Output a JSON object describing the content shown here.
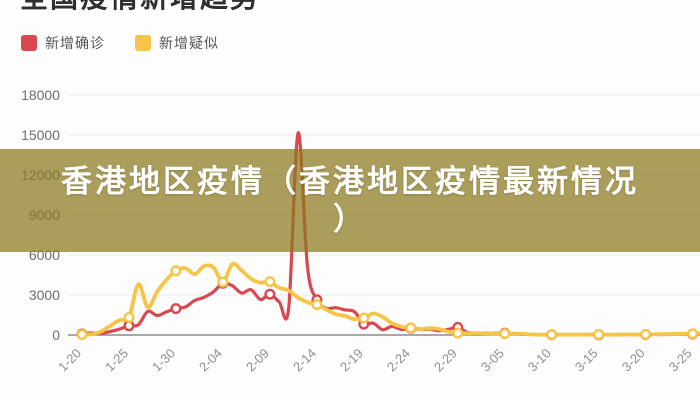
{
  "header": {
    "title": "全国疫情新增趋势"
  },
  "legend": {
    "items": [
      {
        "label": "新增确诊",
        "color": "#d8494f"
      },
      {
        "label": "新增疑似",
        "color": "#f6c548"
      }
    ]
  },
  "overlay": {
    "text": "香港地区疫情（香港地区疫情最新情况）",
    "line1": "香港地区疫情（香港地区疫情最新情况",
    "line2": "）",
    "bg": "rgba(139,121,29,0.72)",
    "text_color": "#ffffff"
  },
  "axis": {
    "y_label_color": "#6e6e6e",
    "x_label_color": "#8f8f8f",
    "grid_color": "#e9e9e9",
    "axis_line_color": "#8c8c8c"
  },
  "chart_data": {
    "type": "line",
    "title": "全国疫情新增趋势",
    "xlabel": "",
    "ylabel": "",
    "ylim": [
      0,
      18000
    ],
    "yticks": [
      0,
      3000,
      6000,
      9000,
      12000,
      15000,
      18000
    ],
    "xticks": [
      "1-20",
      "1-25",
      "1-30",
      "2-04",
      "2-09",
      "2-14",
      "2-19",
      "2-24",
      "2-29",
      "3-05",
      "3-10",
      "3-15",
      "3-20",
      "3-25"
    ],
    "grid": true,
    "legend_position": "top-left",
    "marker_every": 5,
    "x": [
      "1-20",
      "1-21",
      "1-22",
      "1-23",
      "1-24",
      "1-25",
      "1-26",
      "1-27",
      "1-28",
      "1-29",
      "1-30",
      "1-31",
      "2-01",
      "2-02",
      "2-03",
      "2-04",
      "2-05",
      "2-06",
      "2-07",
      "2-08",
      "2-09",
      "2-10",
      "2-11",
      "2-12",
      "2-13",
      "2-14",
      "2-15",
      "2-16",
      "2-17",
      "2-18",
      "2-19",
      "2-20",
      "2-21",
      "2-22",
      "2-23",
      "2-24",
      "2-25",
      "2-26",
      "2-27",
      "2-28",
      "2-29",
      "3-01",
      "3-02",
      "3-03",
      "3-04",
      "3-05",
      "3-06",
      "3-07",
      "3-08",
      "3-09",
      "3-10",
      "3-11",
      "3-12",
      "3-13",
      "3-14",
      "3-15",
      "3-16",
      "3-17",
      "3-18",
      "3-19",
      "3-20",
      "3-21",
      "3-22",
      "3-23",
      "3-24",
      "3-25",
      "3-26"
    ],
    "series": [
      {
        "name": "新增确诊",
        "color": "#d8494f",
        "values": [
          77,
          149,
          131,
          259,
          444,
          688,
          769,
          1771,
          1459,
          1737,
          1982,
          2102,
          2590,
          2829,
          3235,
          3887,
          3694,
          3143,
          3399,
          2656,
          3062,
          2478,
          2015,
          15152,
          5090,
          2641,
          2009,
          2048,
          1886,
          1749,
          820,
          889,
          397,
          648,
          409,
          508,
          406,
          433,
          327,
          427,
          573,
          202,
          125,
          119,
          139,
          143,
          99,
          44,
          40,
          19,
          24,
          15,
          8,
          11,
          20,
          16,
          21,
          13,
          34,
          39,
          41,
          46,
          39,
          78,
          47,
          67,
          55
        ]
      },
      {
        "name": "新增疑似",
        "color": "#f6c548",
        "values": [
          27,
          53,
          257,
          680,
          1118,
          1309,
          3806,
          2077,
          3248,
          4148,
          4812,
          5019,
          4562,
          5173,
          5072,
          3971,
          5328,
          4833,
          4214,
          3916,
          4008,
          3536,
          3342,
          2807,
          2450,
          2277,
          1918,
          1563,
          1432,
          1185,
          1277,
          1614,
          1361,
          882,
          620,
          530,
          439,
          508,
          452,
          248,
          141,
          129,
          143,
          129,
          102,
          102,
          100,
          84,
          37,
          31,
          33,
          33,
          28,
          23,
          36,
          37,
          28,
          31,
          47,
          31,
          43,
          54,
          58,
          86,
          89,
          92,
          118
        ]
      }
    ]
  }
}
